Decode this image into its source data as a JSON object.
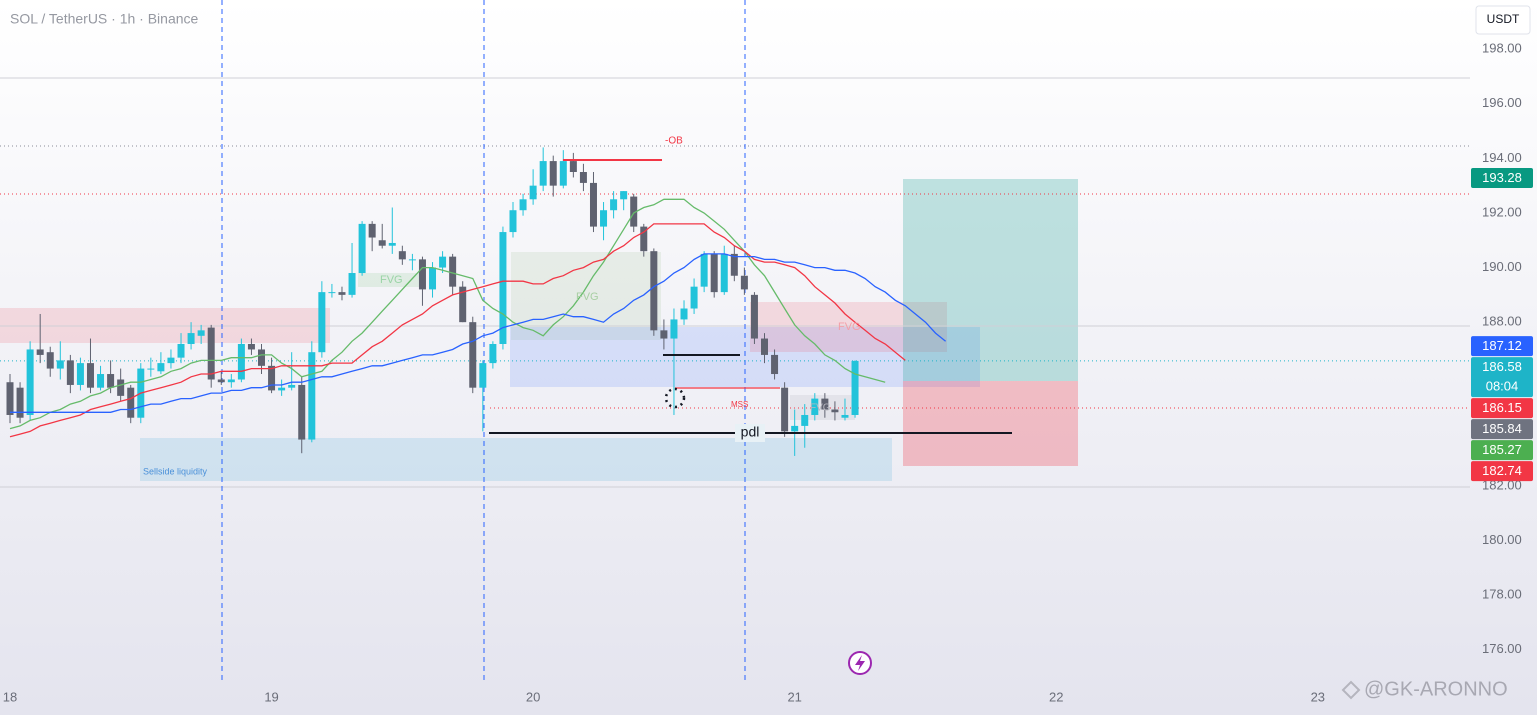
{
  "chart_data": {
    "type": "candlestick",
    "title": "SOL / TetherUS · 1h · Binance",
    "currency": "USDT",
    "categories": [
      "18",
      null,
      null,
      null,
      null,
      null,
      null,
      null,
      null,
      null,
      null,
      null,
      null,
      null,
      null,
      null,
      null,
      null,
      null,
      null,
      null,
      null,
      null,
      null,
      null,
      null,
      "19",
      null,
      null,
      null,
      null,
      null,
      null,
      null,
      null,
      null,
      null,
      null,
      null,
      null,
      null,
      null,
      null,
      null,
      null,
      null,
      null,
      null,
      null,
      null,
      null,
      null,
      "20",
      null,
      null,
      null,
      null,
      null,
      null,
      null,
      null,
      null,
      null,
      null,
      null,
      null,
      null,
      null,
      null,
      null,
      null,
      null,
      null,
      null,
      null,
      null,
      null,
      null,
      "21",
      null,
      null,
      null,
      null,
      null,
      null,
      null,
      null,
      null,
      null,
      null,
      null,
      null,
      null,
      null,
      null,
      null,
      null,
      null,
      null,
      null,
      null,
      null,
      null,
      null,
      "22",
      null,
      null,
      null,
      null,
      null,
      null,
      null,
      null,
      null,
      null,
      null,
      null,
      null,
      null,
      null,
      null,
      null,
      null,
      null,
      null,
      null,
      null,
      null,
      null,
      null,
      "23"
    ],
    "open": [
      185.8,
      185.6,
      184.6,
      187.0,
      186.9,
      186.3,
      186.6,
      185.7,
      186.5,
      185.6,
      186.1,
      185.9,
      185.6,
      184.5,
      186.3,
      186.2,
      186.5,
      186.7,
      187.2,
      187.5,
      187.8,
      185.9,
      185.8,
      185.9,
      187.2,
      187.0,
      186.4,
      185.5,
      185.6,
      185.7,
      183.7,
      186.9,
      189.1,
      189.1,
      189.0,
      189.8,
      191.6,
      191.0,
      190.8,
      190.6,
      190.3,
      190.3,
      189.2,
      190.0,
      190.4,
      189.3,
      188.0,
      185.6,
      186.5,
      187.2,
      191.3,
      192.1,
      192.5,
      193.0,
      193.9,
      193.0,
      193.9,
      193.5,
      193.1,
      191.5,
      192.1,
      192.5,
      192.6,
      191.5,
      190.6,
      187.7,
      187.4,
      188.1,
      188.5,
      189.3,
      190.5,
      189.1,
      190.5,
      189.7,
      189.0,
      187.4,
      186.8,
      185.6,
      184.0,
      184.2,
      184.6,
      185.2,
      184.8,
      184.5,
      184.6,
      null,
      null,
      null,
      null,
      null,
      null,
      null,
      null,
      null,
      null,
      null,
      null,
      null,
      null,
      null,
      null,
      null,
      null,
      null,
      null,
      null,
      null,
      null,
      null,
      null,
      null,
      null,
      null,
      null,
      null,
      null,
      null,
      null,
      null,
      null,
      null,
      null,
      null,
      null,
      null,
      null,
      null,
      null,
      null,
      null,
      null
    ],
    "high": [
      186.1,
      185.8,
      187.3,
      188.3,
      187.1,
      187.3,
      186.8,
      186.7,
      187.4,
      186.4,
      186.6,
      186.3,
      185.7,
      186.5,
      186.7,
      186.9,
      187.0,
      187.6,
      188.0,
      187.9,
      187.9,
      186.2,
      186.1,
      187.4,
      187.4,
      187.2,
      186.7,
      185.9,
      186.9,
      186.0,
      187.3,
      189.5,
      189.4,
      189.3,
      190.9,
      191.7,
      191.7,
      191.6,
      192.2,
      190.8,
      190.5,
      190.4,
      190.2,
      190.6,
      190.5,
      189.5,
      188.2,
      186.6,
      187.3,
      191.5,
      192.4,
      192.7,
      193.6,
      194.4,
      194.1,
      194.3,
      194.2,
      193.8,
      193.5,
      192.4,
      192.8,
      192.8,
      192.7,
      191.6,
      190.7,
      188.1,
      188.5,
      188.8,
      189.6,
      190.6,
      190.6,
      190.8,
      190.8,
      190.0,
      189.1,
      187.6,
      187.0,
      185.8,
      184.8,
      185.0,
      185.4,
      185.4,
      185.1,
      185.2,
      186.6,
      null,
      null,
      null,
      null,
      null,
      null,
      null,
      null,
      null,
      null,
      null,
      null,
      null,
      null,
      null,
      null,
      null,
      null,
      null,
      null,
      null,
      null,
      null,
      null,
      null,
      null,
      null,
      null,
      null,
      null,
      null,
      null,
      null,
      null,
      null,
      null,
      null,
      null,
      null,
      null,
      null,
      null,
      null,
      null,
      null,
      null
    ],
    "low": [
      184.3,
      184.3,
      184.4,
      186.5,
      186.0,
      185.9,
      185.4,
      185.5,
      185.4,
      185.5,
      185.4,
      185.1,
      184.3,
      184.3,
      186.0,
      186.1,
      186.3,
      186.5,
      187.0,
      187.2,
      185.6,
      185.7,
      185.6,
      185.8,
      186.8,
      186.1,
      185.4,
      185.3,
      185.5,
      183.2,
      183.6,
      186.7,
      188.9,
      188.8,
      188.9,
      189.7,
      190.6,
      190.7,
      190.5,
      190.1,
      189.9,
      188.6,
      188.9,
      189.8,
      189.0,
      188.0,
      185.4,
      184.0,
      186.3,
      187.0,
      191.1,
      191.9,
      192.3,
      192.8,
      192.6,
      192.9,
      193.3,
      192.8,
      191.3,
      191.0,
      191.8,
      192.1,
      191.3,
      190.4,
      187.5,
      187.0,
      184.6,
      187.9,
      188.3,
      189.1,
      188.9,
      189.0,
      189.5,
      189.0,
      187.2,
      186.5,
      185.9,
      183.8,
      183.1,
      183.4,
      184.4,
      184.5,
      184.4,
      184.4,
      184.5,
      null,
      null,
      null,
      null,
      null,
      null,
      null,
      null,
      null,
      null,
      null,
      null,
      null,
      null,
      null,
      null,
      null,
      null,
      null,
      null,
      null,
      null,
      null,
      null,
      null,
      null,
      null,
      null,
      null,
      null,
      null,
      null,
      null,
      null,
      null,
      null,
      null,
      null,
      null,
      null,
      null,
      null,
      null,
      null,
      null,
      null
    ],
    "close": [
      184.6,
      184.5,
      187.0,
      186.8,
      186.3,
      186.6,
      185.7,
      186.5,
      185.6,
      186.1,
      185.6,
      185.3,
      184.5,
      186.3,
      186.3,
      186.5,
      186.7,
      187.2,
      187.6,
      187.7,
      185.9,
      185.8,
      185.9,
      187.2,
      187.0,
      186.4,
      185.5,
      185.6,
      185.7,
      183.7,
      186.9,
      189.1,
      189.1,
      189.0,
      189.8,
      191.6,
      191.1,
      190.8,
      190.9,
      190.3,
      190.3,
      189.2,
      190.0,
      190.4,
      189.3,
      188.0,
      185.6,
      186.5,
      187.2,
      191.3,
      192.1,
      192.5,
      193.0,
      193.9,
      193.0,
      193.9,
      193.5,
      193.1,
      191.5,
      192.1,
      192.5,
      192.8,
      191.5,
      190.6,
      187.7,
      187.4,
      188.1,
      188.5,
      189.3,
      190.5,
      189.1,
      190.5,
      189.7,
      189.2,
      187.4,
      186.8,
      186.1,
      184.0,
      184.2,
      184.6,
      185.2,
      184.8,
      184.7,
      184.6,
      186.58,
      null,
      null,
      null,
      null,
      null,
      null,
      null,
      null,
      null,
      null,
      null,
      null,
      null,
      null,
      null,
      null,
      null,
      null,
      null,
      null,
      null,
      null,
      null,
      null,
      null,
      null,
      null,
      null,
      null,
      null,
      null,
      null,
      null,
      null,
      null,
      null,
      null,
      null,
      null,
      null,
      null,
      null,
      null,
      null,
      null,
      null
    ],
    "up_color": "#22c3da",
    "down_color": "#5f6270",
    "indicators": [
      {
        "color": "#66bb6a",
        "values": [
          184.1,
          184.2,
          184.4,
          184.5,
          184.7,
          184.8,
          185.0,
          185.1,
          185.3,
          185.4,
          185.6,
          185.7,
          185.8,
          185.8,
          185.9,
          186.0,
          186.2,
          186.3,
          186.5,
          186.6,
          186.6,
          186.6,
          186.7,
          186.7,
          186.7,
          186.8,
          186.8,
          186.5,
          186.3,
          186.0,
          186.1,
          186.2,
          186.6,
          186.9,
          187.3,
          187.6,
          188.0,
          188.4,
          188.8,
          189.2,
          189.6,
          190.0,
          190.0,
          189.9,
          189.8,
          189.7,
          189.6,
          188.8,
          188.5,
          188.3,
          188.0,
          187.8,
          187.7,
          187.5,
          187.9,
          188.2,
          188.6,
          189.1,
          189.7,
          190.2,
          190.8,
          191.4,
          192.0,
          192.2,
          192.3,
          192.5,
          192.5,
          192.5,
          192.2,
          192.0,
          191.7,
          191.4,
          191.0,
          190.6,
          190.1,
          189.7,
          189.1,
          188.5,
          187.9,
          187.5,
          187.2,
          186.8,
          186.6,
          186.3,
          186.1,
          186.0,
          185.9,
          185.8,
          null,
          null,
          null,
          null,
          null,
          null,
          null,
          null,
          null,
          null,
          null,
          null,
          null,
          null,
          null,
          null,
          null,
          null,
          null,
          null,
          null,
          null,
          null,
          null,
          null,
          null,
          null,
          null,
          null,
          null,
          null,
          null,
          null,
          null,
          null,
          null,
          null,
          null,
          null,
          null,
          null
        ]
      },
      {
        "color": "#f23645",
        "values": [
          183.8,
          183.9,
          184.0,
          184.2,
          184.3,
          184.4,
          184.5,
          184.6,
          184.8,
          184.9,
          185.0,
          185.1,
          185.2,
          185.4,
          185.5,
          185.6,
          185.7,
          185.8,
          186.0,
          186.1,
          186.1,
          186.2,
          186.2,
          186.2,
          186.3,
          186.3,
          186.3,
          186.4,
          186.4,
          186.4,
          186.4,
          186.4,
          186.5,
          186.5,
          186.5,
          186.8,
          187.1,
          187.3,
          187.6,
          187.9,
          188.1,
          188.3,
          188.6,
          188.8,
          189.0,
          189.1,
          189.2,
          189.3,
          189.4,
          189.5,
          189.5,
          189.5,
          189.4,
          189.4,
          189.6,
          189.7,
          189.9,
          190.0,
          190.2,
          190.3,
          190.6,
          190.8,
          191.1,
          191.3,
          191.6,
          191.6,
          191.6,
          191.6,
          191.6,
          191.6,
          191.3,
          191.1,
          190.8,
          190.6,
          190.3,
          190.2,
          190.2,
          190.1,
          190.0,
          189.7,
          189.3,
          189.0,
          188.7,
          188.3,
          188.0,
          187.7,
          187.4,
          187.2,
          186.9,
          186.6,
          null,
          null,
          null,
          null,
          null,
          null,
          null,
          null,
          null,
          null,
          null,
          null,
          null,
          null,
          null,
          null,
          null,
          null,
          null,
          null,
          null,
          null,
          null,
          null,
          null,
          null,
          null,
          null,
          null,
          null,
          null,
          null,
          null,
          null,
          null,
          null,
          null,
          null,
          null,
          null,
          null
        ]
      },
      {
        "color": "#2962ff",
        "values": [
          184.7,
          184.7,
          184.7,
          184.7,
          184.7,
          184.7,
          184.7,
          184.7,
          184.7,
          184.7,
          184.7,
          184.8,
          184.8,
          184.9,
          185.0,
          185.0,
          185.1,
          185.2,
          185.2,
          185.3,
          185.4,
          185.4,
          185.5,
          185.5,
          185.6,
          185.6,
          185.7,
          185.7,
          185.8,
          185.8,
          185.9,
          186.0,
          186.0,
          186.1,
          186.2,
          186.3,
          186.4,
          186.4,
          186.5,
          186.6,
          186.7,
          186.8,
          186.8,
          186.9,
          187.0,
          187.2,
          187.3,
          187.5,
          187.6,
          187.8,
          187.9,
          188.0,
          188.1,
          188.1,
          188.2,
          188.3,
          188.2,
          188.2,
          188.1,
          188.0,
          188.3,
          188.5,
          188.8,
          189.0,
          189.3,
          189.5,
          189.8,
          190.0,
          190.3,
          190.5,
          190.5,
          190.5,
          190.4,
          190.4,
          190.4,
          190.3,
          190.3,
          190.2,
          190.2,
          190.1,
          190.0,
          190.0,
          189.9,
          189.9,
          189.8,
          189.6,
          189.3,
          189.1,
          188.8,
          188.6,
          188.3,
          188.0,
          187.6,
          187.3,
          null,
          null,
          null,
          null,
          null,
          null,
          null,
          null,
          null,
          null,
          null,
          null,
          null,
          null,
          null,
          null,
          null,
          null,
          null,
          null,
          null,
          null,
          null,
          null,
          null,
          null,
          null,
          null,
          null,
          null,
          null,
          null,
          null,
          null,
          null,
          null,
          null
        ]
      }
    ],
    "ylim": [
      174.6,
      199.8
    ],
    "yticks": [
      {
        "value": 176,
        "label": "176.00"
      },
      {
        "value": 178,
        "label": "178.00"
      },
      {
        "value": 180,
        "label": "180.00"
      },
      {
        "value": 182,
        "label": "182.00"
      },
      {
        "value": 184,
        "label": "184.00"
      },
      {
        "value": 186,
        "label": "186.00"
      },
      {
        "value": 188,
        "label": "188.00"
      },
      {
        "value": 190,
        "label": "190.00"
      },
      {
        "value": 192,
        "label": "192.00"
      },
      {
        "value": 194,
        "label": "194.00"
      },
      {
        "value": 196,
        "label": "196.00"
      },
      {
        "value": 198,
        "label": "198.00"
      }
    ],
    "grid": false,
    "price_labels": [
      {
        "value": 193.28,
        "color": "#089981"
      },
      {
        "value": 187.12,
        "color": "#2962ff"
      },
      {
        "value": 186.58,
        "color": "#1eb4c8",
        "countdown": "08:04"
      },
      {
        "value": 186.15,
        "color": "#f23645"
      },
      {
        "value": 185.84,
        "color": "#6f7380"
      },
      {
        "value": 185.27,
        "color": "#4caf50"
      },
      {
        "value": 182.74,
        "color": "#f23645"
      }
    ],
    "annotations": [
      "-OB",
      "FVG",
      "FVG",
      "FVG",
      "FVG",
      "MSS",
      "pdl",
      "Sellside liquidity"
    ],
    "watermark": "@GK-ARONNO"
  }
}
